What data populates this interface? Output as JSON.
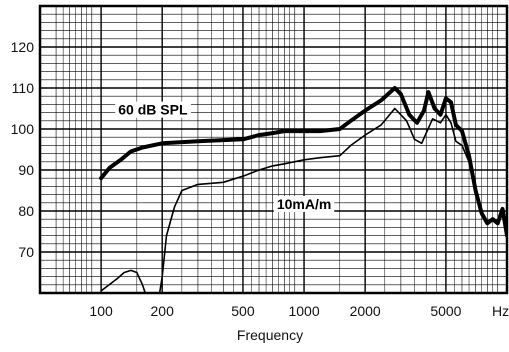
{
  "chart_data": {
    "type": "line",
    "title": "",
    "xlabel": "Frequency",
    "ylabel": "",
    "x_scale": "log",
    "xlim": [
      50,
      10000
    ],
    "ylim": [
      60,
      130
    ],
    "grid": true,
    "x_tick_labels": [
      {
        "value": 100,
        "label": "100"
      },
      {
        "value": 200,
        "label": "200"
      },
      {
        "value": 500,
        "label": "500"
      },
      {
        "value": 1000,
        "label": "1000"
      },
      {
        "value": 2000,
        "label": "2000"
      },
      {
        "value": 5000,
        "label": "5000"
      },
      {
        "value": 9300,
        "label": "Hz"
      }
    ],
    "y_ticks": [
      70,
      80,
      90,
      100,
      110,
      120
    ],
    "series": [
      {
        "name": "60 dB SPL",
        "style": "thick",
        "color": "#000000",
        "x": [
          100,
          110,
          125,
          140,
          160,
          200,
          300,
          500,
          600,
          700,
          800,
          1000,
          1200,
          1500,
          1700,
          2000,
          2400,
          2800,
          3000,
          3300,
          3600,
          3900,
          4100,
          4400,
          4700,
          5000,
          5300,
          5600,
          6000,
          6500,
          7000,
          7500,
          8000,
          8500,
          9000,
          9500,
          10000
        ],
        "y": [
          88,
          90.5,
          92.5,
          94.5,
          95.5,
          96.5,
          97,
          97.5,
          98.5,
          99,
          99.5,
          99.5,
          99.5,
          100,
          102,
          104.5,
          107,
          110,
          108.5,
          103.5,
          101.5,
          104.5,
          109,
          105,
          103.5,
          107.5,
          106.5,
          101,
          99.5,
          93.5,
          85,
          79.5,
          77,
          78,
          77,
          80.5,
          74
        ]
      },
      {
        "name": "10mA/m",
        "style": "thin",
        "color": "#000000",
        "x": [
          100,
          120,
          130,
          140,
          150,
          160,
          170,
          180,
          190,
          200,
          210,
          230,
          250,
          300,
          400,
          500,
          600,
          700,
          800,
          1000,
          1200,
          1500,
          1700,
          2000,
          2400,
          2800,
          3200,
          3500,
          3800,
          4000,
          4300,
          4700,
          5000,
          5300,
          5600,
          6000,
          6500,
          7000,
          7500,
          8000,
          8500,
          9000,
          9500,
          10000
        ],
        "y": [
          60.5,
          63.5,
          65,
          65.5,
          65,
          62,
          58,
          55,
          57,
          64,
          74,
          81,
          85,
          86.5,
          87,
          88.5,
          90,
          91,
          91.5,
          92.5,
          93,
          93.5,
          96,
          98.5,
          101,
          105,
          102,
          97.5,
          96.5,
          99,
          102.5,
          101.5,
          103.5,
          101.5,
          97,
          96,
          92,
          84,
          79,
          77.5,
          78,
          77,
          79.5,
          74
        ]
      }
    ],
    "annotations": [
      {
        "text": "60 dB SPL",
        "x": 180,
        "y": 103.5
      },
      {
        "text": "10mA/m",
        "x": 1000,
        "y": 80.5
      }
    ]
  }
}
